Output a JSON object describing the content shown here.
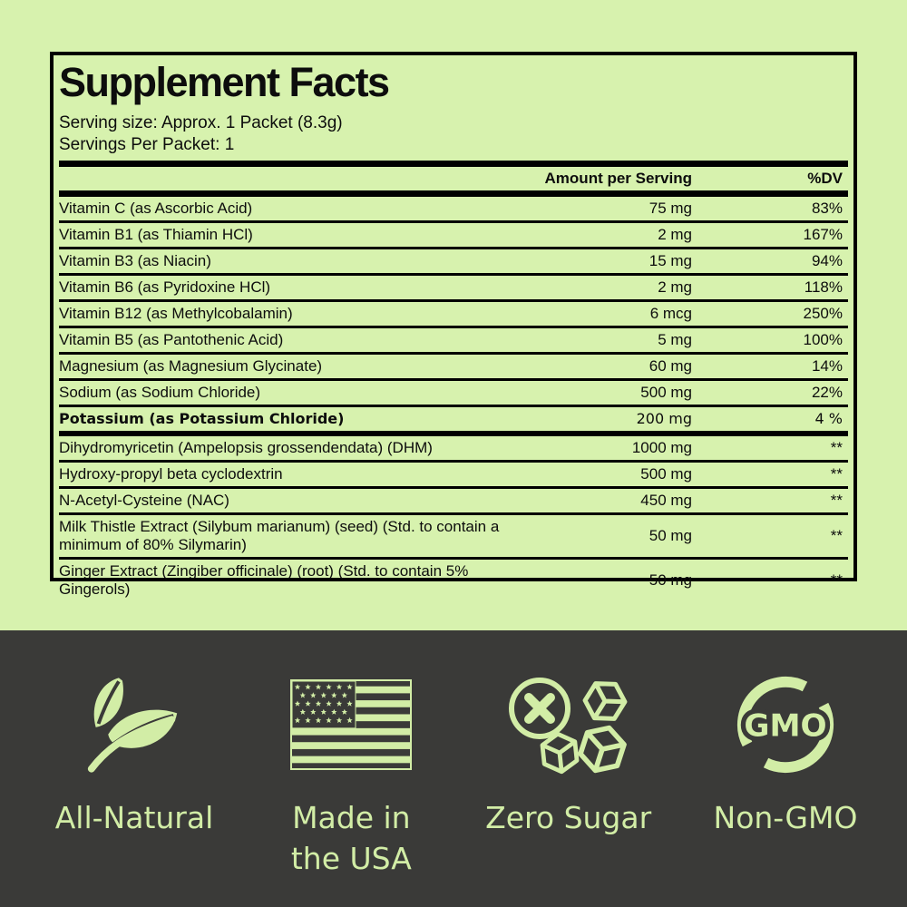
{
  "label": {
    "title": "Supplement Facts",
    "serving_size": "Serving size: Approx. 1 Packet (8.3g)",
    "servings_per": "Servings Per Packet: 1",
    "columns": {
      "amount": "Amount per Serving",
      "dv": "%DV"
    },
    "rows": [
      {
        "name": "Vitamin C (as Ascorbic Acid)",
        "amount": "75 mg",
        "dv": "83%"
      },
      {
        "name": "Vitamin B1 (as Thiamin HCl)",
        "amount": "2 mg",
        "dv": "167%"
      },
      {
        "name": "Vitamin B3 (as Niacin)",
        "amount": "15 mg",
        "dv": "94%"
      },
      {
        "name": "Vitamin B6 (as Pyridoxine HCl)",
        "amount": "2 mg",
        "dv": "118%"
      },
      {
        "name": "Vitamin B12 (as Methylcobalamin)",
        "amount": "6 mcg",
        "dv": "250%"
      },
      {
        "name": "Vitamin B5 (as Pantothenic Acid)",
        "amount": "5 mg",
        "dv": "100%"
      },
      {
        "name": "Magnesium (as Magnesium Glycinate)",
        "amount": "60 mg",
        "dv": "14%"
      },
      {
        "name": "Sodium (as Sodium Chloride)",
        "amount": "500 mg",
        "dv": "22%"
      },
      {
        "name": "Potassium (as Potassium Chloride)",
        "amount": "200 mg",
        "dv": "4 %",
        "bold": true,
        "thick_after": true
      },
      {
        "name": "Dihydromyricetin (Ampelopsis grossendendata) (DHM)",
        "amount": "1000 mg",
        "dv": "**"
      },
      {
        "name": "Hydroxy-propyl beta cyclodextrin",
        "amount": "500 mg",
        "dv": "**"
      },
      {
        "name": "N-Acetyl-Cysteine (NAC)",
        "amount": "450 mg",
        "dv": "**"
      },
      {
        "name": "Milk Thistle Extract (Silybum marianum) (seed) (Std. to contain a minimum of 80% Silymarin)",
        "amount": "50 mg",
        "dv": "**"
      },
      {
        "name": "Ginger Extract (Zingiber officinale) (root) (Std. to contain 5% Gingerols)",
        "amount": "50 mg",
        "dv": "**"
      }
    ]
  },
  "badges": {
    "items": [
      {
        "icon": "leaf-icon",
        "label": "All-Natural"
      },
      {
        "icon": "usa-flag-icon",
        "label": "Made in the USA"
      },
      {
        "icon": "zero-sugar-icon",
        "label": "Zero Sugar"
      },
      {
        "icon": "non-gmo-icon",
        "label": "Non-GMO",
        "icon_text": "GMO"
      }
    ]
  },
  "colors": {
    "background": "#d7f2ae",
    "panel_dark": "#3a3a38",
    "accent_green": "#d2eda6",
    "text_black": "#0d0d0d"
  }
}
